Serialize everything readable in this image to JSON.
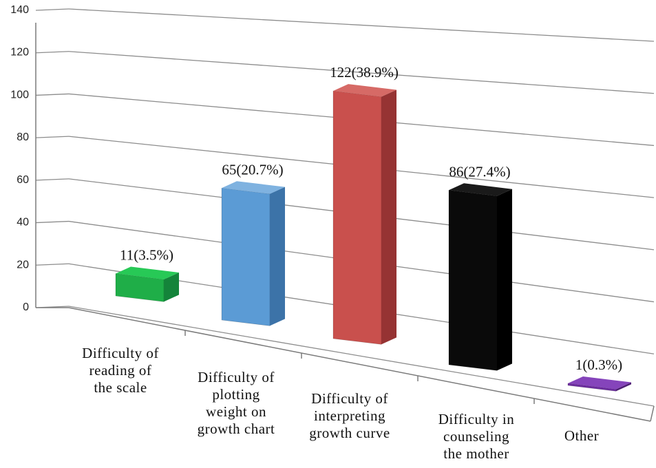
{
  "chart_data": {
    "type": "bar",
    "three_d": true,
    "categories": [
      [
        "Difficulty of",
        "reading of",
        "the scale"
      ],
      [
        "Difficulty of",
        "plotting",
        "weight on",
        "growth chart"
      ],
      [
        "Difficulty of",
        "interpreting",
        "growth curve"
      ],
      [
        "Difficulty in",
        "counseling",
        "the mother"
      ],
      [
        "Other"
      ]
    ],
    "values": [
      11,
      65,
      122,
      86,
      1
    ],
    "data_labels": [
      "11(3.5%)",
      "65(20.7%)",
      "122(38.9%)",
      "86(27.4%)",
      "1(0.3%)"
    ],
    "colors": [
      "#1fae48",
      "#5b9bd5",
      "#c9504d",
      "#0a0a0a",
      "#6b2c9e"
    ],
    "side_colors": [
      "#14843a",
      "#3c73a8",
      "#963333",
      "#000000",
      "#4d1f73"
    ],
    "top_colors": [
      "#27c956",
      "#7fb2e0",
      "#d66a66",
      "#1a1a1a",
      "#8544bb"
    ],
    "yticks": [
      0,
      20,
      40,
      60,
      80,
      100,
      120,
      140
    ],
    "ylim": [
      0,
      140
    ],
    "grid": true,
    "legend": "none",
    "title": "",
    "xlabel": "",
    "ylabel": ""
  }
}
